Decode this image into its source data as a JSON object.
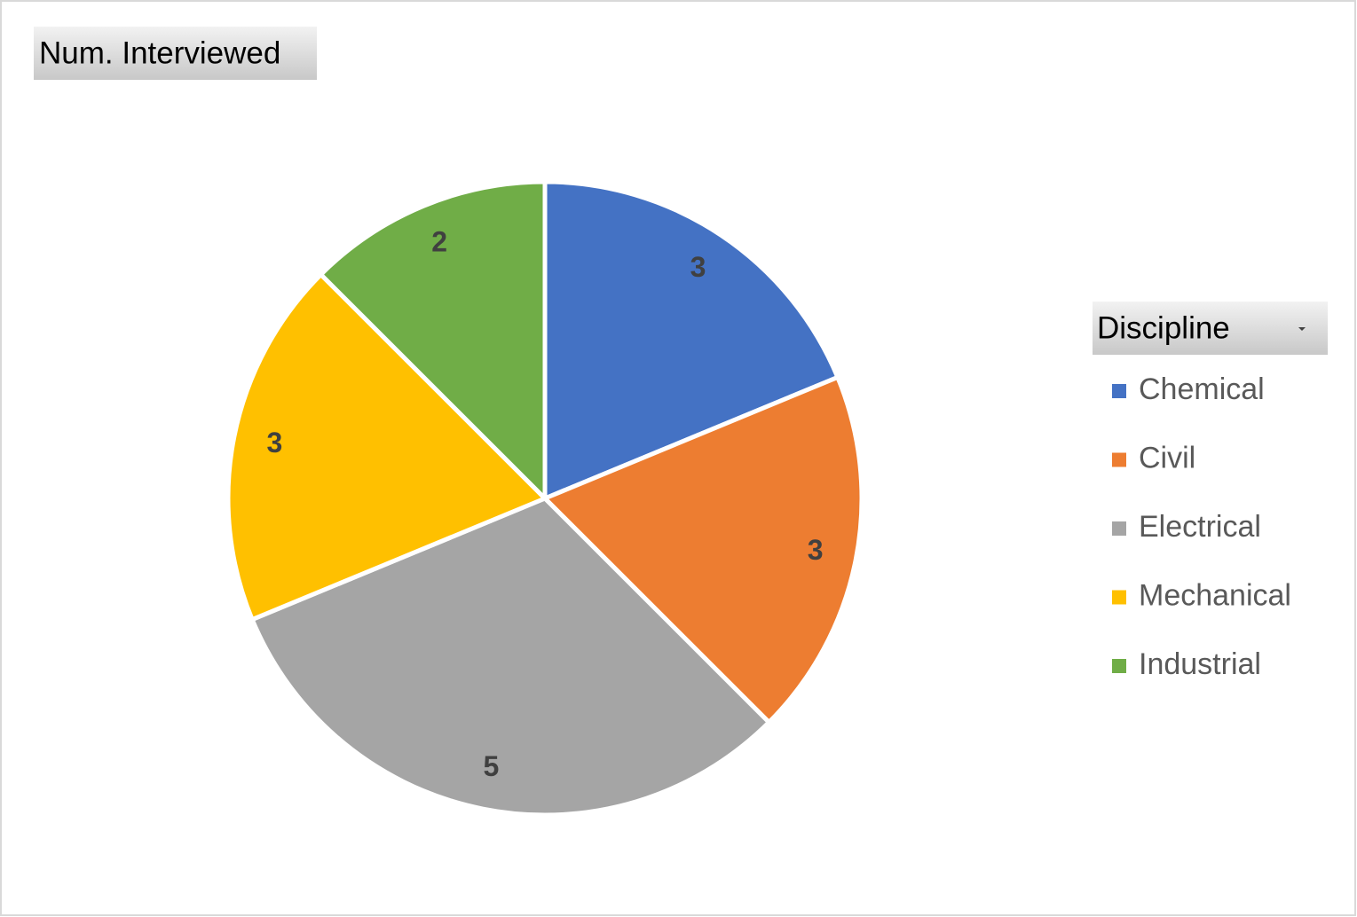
{
  "chart_data": {
    "type": "pie",
    "title": "Num. Interviewed",
    "legend_title": "Discipline",
    "legend": "right",
    "categories": [
      "Chemical",
      "Civil",
      "Electrical",
      "Mechanical",
      "Industrial"
    ],
    "values": [
      3,
      3,
      5,
      3,
      2
    ],
    "colors": [
      "#4472c4",
      "#ed7d31",
      "#a5a5a5",
      "#ffc000",
      "#70ad47"
    ]
  }
}
